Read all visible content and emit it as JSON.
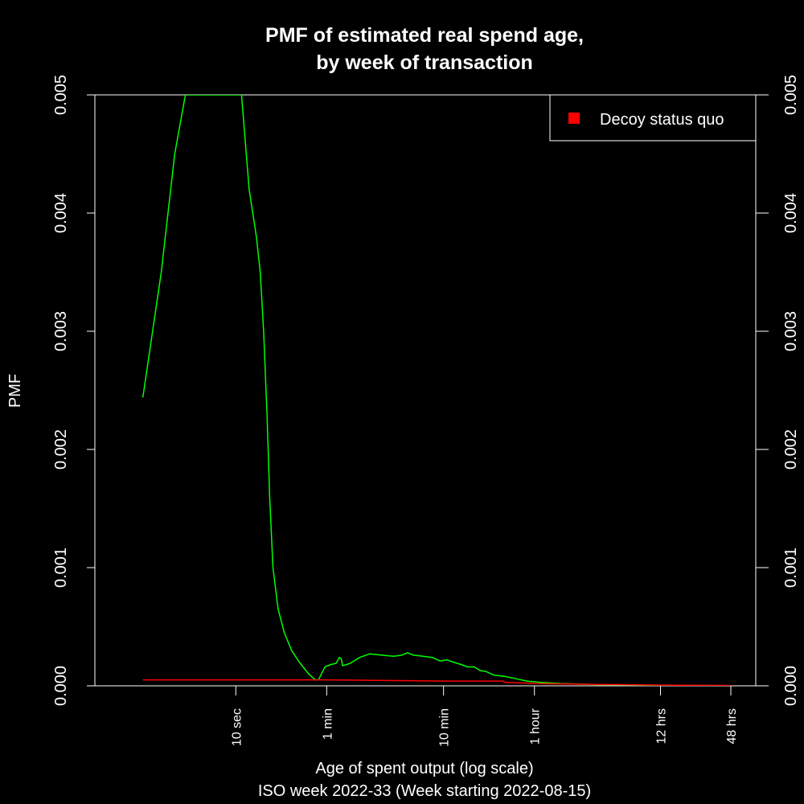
{
  "chart_data": {
    "type": "line",
    "title": "PMF of estimated real spend age,",
    "title_line2": "by week of transaction",
    "xlabel": "Age of spent output (log scale)",
    "xlabel_line2": "ISO week 2022-33 (Week starting 2022-08-15)",
    "ylabel": "PMF",
    "x_scale": "log",
    "xlim_seconds": [
      1,
      172800
    ],
    "ylim": [
      0,
      0.005
    ],
    "y_ticks": [
      "0.000",
      "0.001",
      "0.002",
      "0.003",
      "0.004",
      "0.005"
    ],
    "x_ticks": [
      {
        "label": "10 sec",
        "seconds": 10
      },
      {
        "label": "1 min",
        "seconds": 60
      },
      {
        "label": "10 min",
        "seconds": 600
      },
      {
        "label": "1 hour",
        "seconds": 3600
      },
      {
        "label": "12 hrs",
        "seconds": 43200
      },
      {
        "label": "48 hrs",
        "seconds": 172800
      }
    ],
    "legend": {
      "position": "top-right",
      "entries": [
        {
          "label": "Decoy status quo",
          "color": "#ff0000"
        }
      ]
    },
    "series": [
      {
        "color": "#00ff00",
        "points": [
          [
            1.6,
            0.00244
          ],
          [
            2.3,
            0.0035
          ],
          [
            3.0,
            0.0045
          ],
          [
            3.7,
            0.005
          ],
          [
            11.2,
            0.005
          ],
          [
            13.0,
            0.0042
          ],
          [
            15.0,
            0.0038
          ],
          [
            16.2,
            0.0035
          ],
          [
            17.3,
            0.003
          ],
          [
            18.5,
            0.0023
          ],
          [
            19.5,
            0.0016
          ],
          [
            20.8,
            0.001
          ],
          [
            23.0,
            0.00065
          ],
          [
            26.0,
            0.00045
          ],
          [
            30.0,
            0.0003
          ],
          [
            35.0,
            0.0002
          ],
          [
            42.0,
            0.0001
          ],
          [
            48.0,
            5e-05
          ],
          [
            51.0,
            5e-05
          ],
          [
            54.0,
            0.0001
          ],
          [
            58.0,
            0.00016
          ],
          [
            65.0,
            0.00018
          ],
          [
            72.0,
            0.00019
          ],
          [
            77.0,
            0.00024
          ],
          [
            80.0,
            0.00023
          ],
          [
            82.0,
            0.00017
          ],
          [
            95.0,
            0.00019
          ],
          [
            115.0,
            0.00024
          ],
          [
            140.0,
            0.00027
          ],
          [
            175.0,
            0.00026
          ],
          [
            225.0,
            0.00025
          ],
          [
            265.0,
            0.00026
          ],
          [
            295.0,
            0.00028
          ],
          [
            330.0,
            0.00026
          ],
          [
            400.0,
            0.00025
          ],
          [
            480.0,
            0.00024
          ],
          [
            560.0,
            0.00021
          ],
          [
            640.0,
            0.00022
          ],
          [
            730.0,
            0.0002
          ],
          [
            850.0,
            0.00018
          ],
          [
            960.0,
            0.00016
          ],
          [
            1100.0,
            0.00016
          ],
          [
            1230.0,
            0.00013
          ],
          [
            1400.0,
            0.00012
          ],
          [
            1620.0,
            9e-05
          ],
          [
            2000.0,
            8e-05
          ],
          [
            2500.0,
            6e-05
          ],
          [
            3100.0,
            4e-05
          ],
          [
            4000.0,
            3e-05
          ],
          [
            6000.0,
            2e-05
          ],
          [
            12000.0,
            1e-05
          ],
          [
            40000.0,
            5e-06
          ],
          [
            172800.0,
            2e-06
          ]
        ]
      },
      {
        "name": "Decoy status quo",
        "color": "#ff0000",
        "points": [
          [
            1.6,
            5e-05
          ],
          [
            10.0,
            5e-05
          ],
          [
            60.0,
            5e-05
          ],
          [
            600.0,
            4e-05
          ],
          [
            1950.0,
            4e-05
          ],
          [
            2000.0,
            3e-05
          ],
          [
            3600.0,
            2e-05
          ],
          [
            12000.0,
            1.2e-05
          ],
          [
            43200.0,
            6e-06
          ],
          [
            172800.0,
            3e-06
          ]
        ]
      }
    ]
  }
}
